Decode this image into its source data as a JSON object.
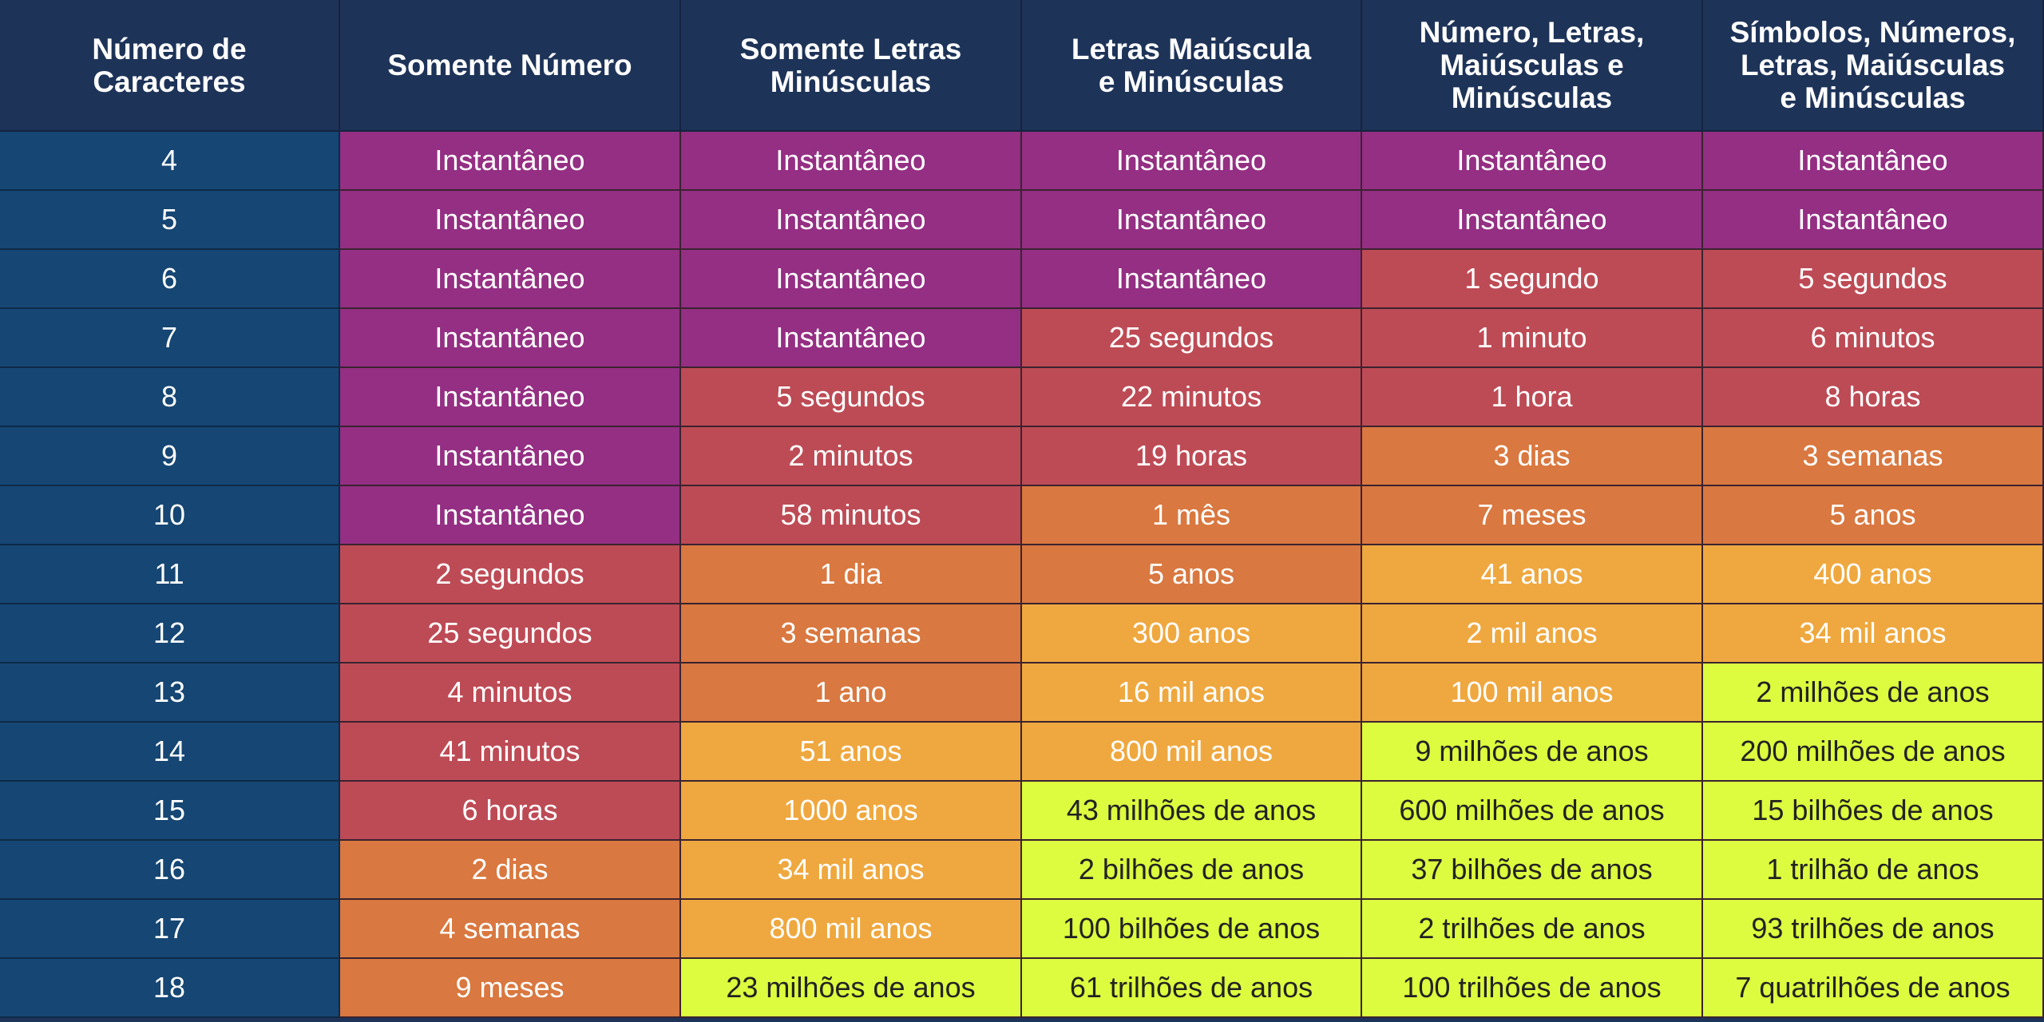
{
  "chart_data": {
    "type": "table",
    "columns": [
      "Número de\nCaracteres",
      "Somente Número",
      "Somente Letras\nMinúsculas",
      "Letras Maiúscula\ne Minúsculas",
      "Número, Letras,\nMaiúsculas e\nMinúsculas",
      "Símbolos, Números,\nLetras, Maiúsculas\ne Minúsculas"
    ],
    "rows": [
      {
        "chars": "4",
        "values": [
          "Instantâneo",
          "Instantâneo",
          "Instantâneo",
          "Instantâneo",
          "Instantâneo"
        ],
        "levels": [
          0,
          0,
          0,
          0,
          0
        ]
      },
      {
        "chars": "5",
        "values": [
          "Instantâneo",
          "Instantâneo",
          "Instantâneo",
          "Instantâneo",
          "Instantâneo"
        ],
        "levels": [
          0,
          0,
          0,
          0,
          0
        ]
      },
      {
        "chars": "6",
        "values": [
          "Instantâneo",
          "Instantâneo",
          "Instantâneo",
          "1 segundo",
          "5 segundos"
        ],
        "levels": [
          0,
          0,
          0,
          1,
          1
        ]
      },
      {
        "chars": "7",
        "values": [
          "Instantâneo",
          "Instantâneo",
          "25 segundos",
          "1 minuto",
          "6 minutos"
        ],
        "levels": [
          0,
          0,
          1,
          1,
          1
        ]
      },
      {
        "chars": "8",
        "values": [
          "Instantâneo",
          "5 segundos",
          "22 minutos",
          "1 hora",
          "8 horas"
        ],
        "levels": [
          0,
          1,
          1,
          1,
          1
        ]
      },
      {
        "chars": "9",
        "values": [
          "Instantâneo",
          "2 minutos",
          "19 horas",
          "3 dias",
          "3 semanas"
        ],
        "levels": [
          0,
          1,
          1,
          2,
          2
        ]
      },
      {
        "chars": "10",
        "values": [
          "Instantâneo",
          "58 minutos",
          "1 mês",
          "7 meses",
          "5 anos"
        ],
        "levels": [
          0,
          1,
          2,
          2,
          2
        ]
      },
      {
        "chars": "11",
        "values": [
          "2 segundos",
          "1 dia",
          "5 anos",
          "41 anos",
          "400 anos"
        ],
        "levels": [
          1,
          2,
          2,
          3,
          3
        ]
      },
      {
        "chars": "12",
        "values": [
          "25 segundos",
          "3 semanas",
          "300 anos",
          "2 mil anos",
          "34 mil anos"
        ],
        "levels": [
          1,
          2,
          3,
          3,
          3
        ]
      },
      {
        "chars": "13",
        "values": [
          "4 minutos",
          "1 ano",
          "16 mil anos",
          "100 mil anos",
          "2 milhões de anos"
        ],
        "levels": [
          1,
          2,
          3,
          3,
          4
        ]
      },
      {
        "chars": "14",
        "values": [
          "41 minutos",
          "51 anos",
          "800 mil anos",
          "9 milhões de anos",
          "200 milhões de anos"
        ],
        "levels": [
          1,
          3,
          3,
          4,
          4
        ]
      },
      {
        "chars": "15",
        "values": [
          "6 horas",
          "1000 anos",
          "43 milhões de anos",
          "600 milhões de anos",
          "15 bilhões de anos"
        ],
        "levels": [
          1,
          3,
          4,
          4,
          4
        ]
      },
      {
        "chars": "16",
        "values": [
          "2 dias",
          "34 mil anos",
          "2 bilhões de anos",
          "37 bilhões de anos",
          "1 trilhão de anos"
        ],
        "levels": [
          2,
          3,
          4,
          4,
          4
        ]
      },
      {
        "chars": "17",
        "values": [
          "4 semanas",
          "800 mil anos",
          "100 bilhões de anos",
          "2 trilhões de anos",
          "93 trilhões de anos"
        ],
        "levels": [
          2,
          3,
          4,
          4,
          4
        ]
      },
      {
        "chars": "18",
        "values": [
          "9 meses",
          "23 milhões de anos",
          "61 trilhões de anos",
          "100 trilhões de anos",
          "7 quatrilhões de anos"
        ],
        "levels": [
          2,
          4,
          4,
          4,
          4
        ]
      }
    ],
    "level_colors": [
      "#942f83",
      "#bd4b55",
      "#d97840",
      "#efa83f",
      "#ddfb3f"
    ],
    "level_text_colors": [
      "#ffffff",
      "#ffffff",
      "#ffffff",
      "#ffffff",
      "#222222"
    ],
    "header_color": "#1e3358",
    "rowhead_color": "#164673"
  }
}
